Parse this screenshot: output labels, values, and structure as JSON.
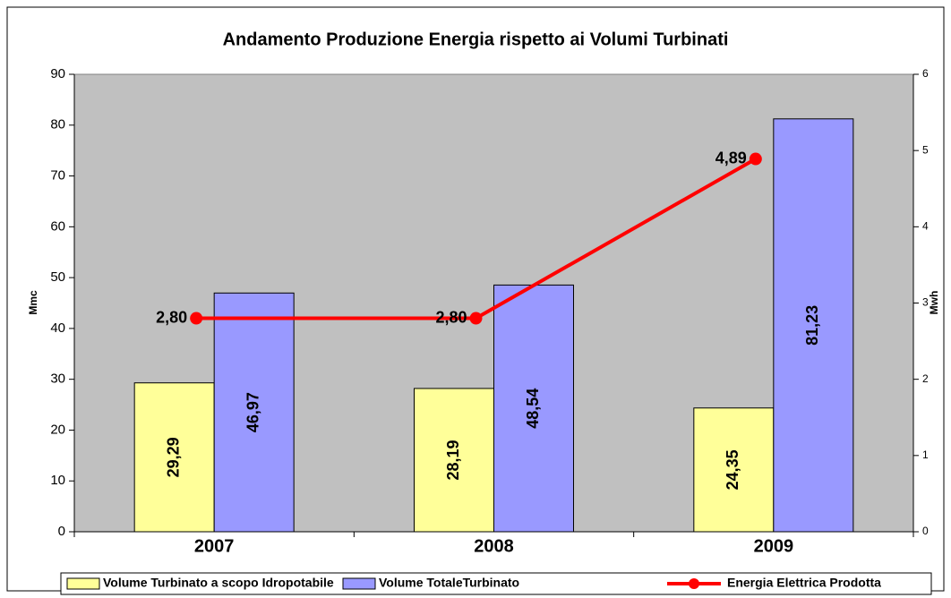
{
  "chart_data": {
    "type": "bar",
    "title": "Andamento Produzione Energia rispetto ai Volumi Turbinati",
    "categories": [
      "2007",
      "2008",
      "2009"
    ],
    "y_label": "Mmc",
    "y2_label": "Mwh",
    "ylim": [
      0,
      90
    ],
    "yticks": [
      0,
      10,
      20,
      30,
      40,
      50,
      60,
      70,
      80,
      90
    ],
    "y2lim": [
      0,
      6
    ],
    "y2ticks": [
      0,
      1,
      2,
      3,
      4,
      5,
      6
    ],
    "legend": "bottom",
    "series": [
      {
        "name": "Volume Turbinato a scopo Idropotabile",
        "type": "bar",
        "color": "#ffff99",
        "values": [
          29.29,
          28.19,
          24.35
        ],
        "value_labels": [
          "29,29",
          "28,19",
          "24,35"
        ]
      },
      {
        "name": "Volume TotaleTurbinato",
        "type": "bar",
        "color": "#9999ff",
        "values": [
          46.97,
          48.54,
          81.23
        ],
        "value_labels": [
          "46,97",
          "48,54",
          "81,23"
        ]
      },
      {
        "name": "Energia Elettrica Prodotta",
        "type": "line",
        "axis": "y2",
        "color": "#ff0000",
        "values": [
          2.8,
          2.8,
          4.89
        ],
        "value_labels": [
          "2,80",
          "2,80",
          "4,89"
        ]
      }
    ]
  }
}
